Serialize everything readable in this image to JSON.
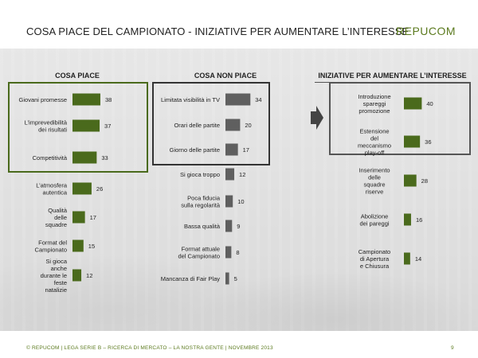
{
  "header": {
    "title": "COSA PIACE DEL CAMPIONATO - INIZIATIVE PER AUMENTARE L’INTERESSE",
    "logo": "REPUCOM"
  },
  "footer": {
    "text": "© REPUCOM | LEGA SERIE B – RICERCA DI MERCATO – LA NOSTRA GENTE | NOVEMBRE 2013",
    "page": "9"
  },
  "colors": {
    "positive_bar": "#4a6a1c",
    "negative_bar": "#5f5f5f",
    "box_positive": "#4a6a1c",
    "box_negative": "#333333"
  },
  "icons": [
    "arrow-right-icon"
  ],
  "chart_data": [
    {
      "type": "bar",
      "orientation": "horizontal",
      "title": "COSA PIACE",
      "categories": [
        "Giovani promesse",
        "L’imprevedibilità dei risultati",
        "Competitività",
        "L’atmosfera autentica",
        "Qualità delle squadre",
        "Format del Campionato",
        "Si gioca anche durante le feste natalizie"
      ],
      "values": [
        38,
        37,
        33,
        26,
        17,
        15,
        12
      ],
      "highlighted_top": 3
    },
    {
      "type": "bar",
      "orientation": "horizontal",
      "title": "COSA NON PIACE",
      "categories": [
        "Limitata visibilità in TV",
        "Orari delle partite",
        "Giorno delle partite",
        "Si gioca troppo",
        "Poca fiducia sulla regolarità",
        "Bassa qualità",
        "Format attuale del Campionato",
        "Mancanza di Fair Play"
      ],
      "values": [
        34,
        20,
        17,
        12,
        10,
        9,
        8,
        5
      ],
      "highlighted_top": 3
    },
    {
      "type": "bar",
      "orientation": "horizontal",
      "title": "INIZIATIVE PER AUMENTARE L’INTERESSE",
      "categories": [
        "Introduzione spareggi promozione",
        "Estensione del meccanismo play-off",
        "Inserimento delle squadre riserve",
        "Abolizione dei pareggi",
        "Campionato di Apertura e Chiusura"
      ],
      "values": [
        40,
        36,
        28,
        16,
        14
      ],
      "highlighted_top": 2
    }
  ]
}
